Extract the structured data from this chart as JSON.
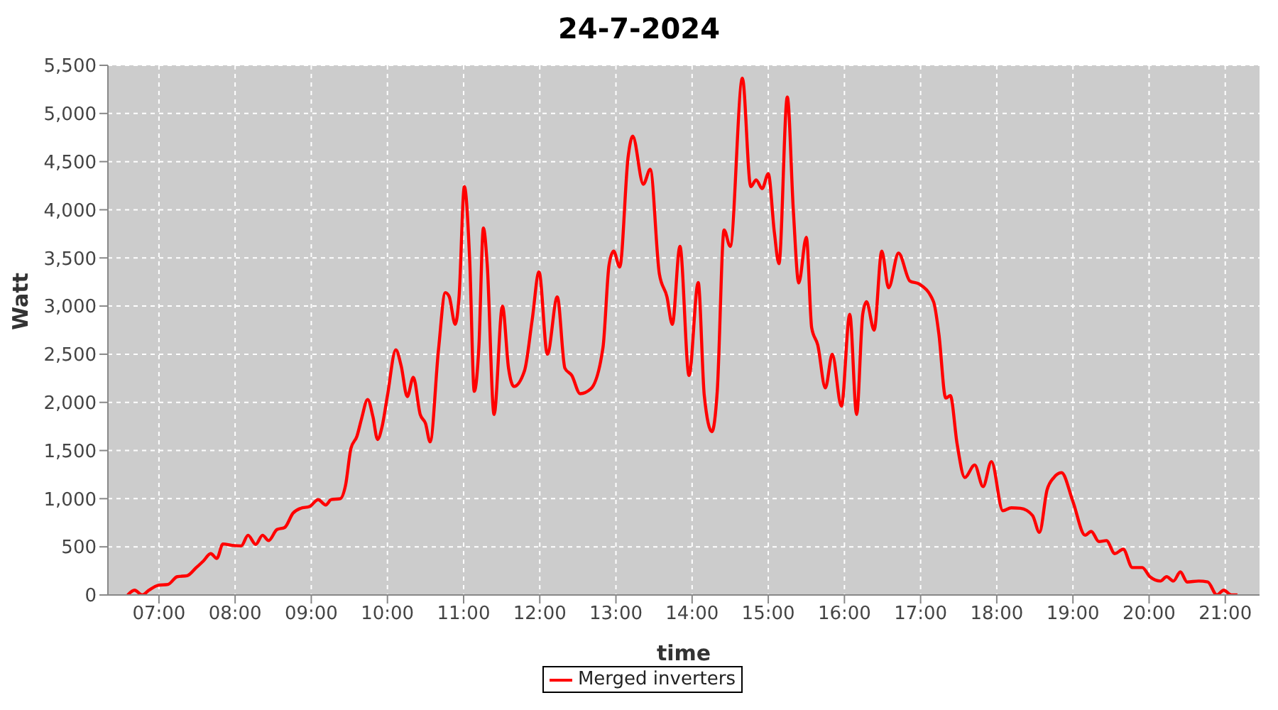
{
  "chart_data": {
    "type": "line",
    "title": "24-7-2024",
    "xlabel": "time",
    "ylabel": "Watt",
    "xlim": [
      6.33,
      21.45
    ],
    "xticks": [
      {
        "value": 7,
        "label": "07:00"
      },
      {
        "value": 8,
        "label": "08:00"
      },
      {
        "value": 9,
        "label": "09:00"
      },
      {
        "value": 10,
        "label": "10:00"
      },
      {
        "value": 11,
        "label": "11:00"
      },
      {
        "value": 12,
        "label": "12:00"
      },
      {
        "value": 13,
        "label": "13:00"
      },
      {
        "value": 14,
        "label": "14:00"
      },
      {
        "value": 15,
        "label": "15:00"
      },
      {
        "value": 16,
        "label": "16:00"
      },
      {
        "value": 17,
        "label": "17:00"
      },
      {
        "value": 18,
        "label": "18:00"
      },
      {
        "value": 19,
        "label": "19:00"
      },
      {
        "value": 20,
        "label": "20:00"
      },
      {
        "value": 21,
        "label": "21:00"
      }
    ],
    "ylim": [
      0,
      5500
    ],
    "yticks": [
      0,
      500,
      {
        "value": 1000,
        "label": "1,000"
      },
      {
        "value": 1500,
        "label": "1,500"
      },
      {
        "value": 2000,
        "label": "2,000"
      },
      {
        "value": 2500,
        "label": "2,500"
      },
      {
        "value": 3000,
        "label": "3,000"
      },
      {
        "value": 3500,
        "label": "3,500"
      },
      {
        "value": 4000,
        "label": "4,000"
      },
      {
        "value": 4500,
        "label": "4,500"
      },
      {
        "value": 5000,
        "label": "5,000"
      },
      {
        "value": 5500,
        "label": "5,500"
      }
    ],
    "grid": true,
    "legend": "bottom",
    "marker": "none",
    "line_style": "solid",
    "series": [
      {
        "name": "Merged inverters",
        "color": "#ff0000",
        "x": [
          6.59,
          6.68,
          6.78,
          6.87,
          6.99,
          7.12,
          7.24,
          7.37,
          7.49,
          7.58,
          7.68,
          7.76,
          7.84,
          7.96,
          8.08,
          8.17,
          8.27,
          8.36,
          8.44,
          8.55,
          8.65,
          8.76,
          8.86,
          8.98,
          9.09,
          9.19,
          9.26,
          9.38,
          9.45,
          9.52,
          9.6,
          9.66,
          9.74,
          9.81,
          9.87,
          9.93,
          10.0,
          10.11,
          10.18,
          10.26,
          10.34,
          10.43,
          10.5,
          10.56,
          10.67,
          10.76,
          10.81,
          10.89,
          10.94,
          11.01,
          11.08,
          11.14,
          11.2,
          11.26,
          11.31,
          11.4,
          11.51,
          11.59,
          11.66,
          11.8,
          11.9,
          11.99,
          12.1,
          12.23,
          12.33,
          12.42,
          12.53,
          12.67,
          12.83,
          12.91,
          12.97,
          13.05,
          13.16,
          13.22,
          13.36,
          13.45,
          13.57,
          13.67,
          13.74,
          13.84,
          13.96,
          14.08,
          14.16,
          14.26,
          14.33,
          14.42,
          14.5,
          14.66,
          14.77,
          14.84,
          14.92,
          15.0,
          15.08,
          15.14,
          15.25,
          15.33,
          15.4,
          15.5,
          15.57,
          15.65,
          15.75,
          15.84,
          15.96,
          16.07,
          16.16,
          16.24,
          16.29,
          16.39,
          16.49,
          16.58,
          16.71,
          16.86,
          16.98,
          17.17,
          17.24,
          17.33,
          17.39,
          17.48,
          17.58,
          17.71,
          17.82,
          17.93,
          18.08,
          18.19,
          18.31,
          18.47,
          18.56,
          18.66,
          18.75,
          18.85,
          19.0,
          19.16,
          19.24,
          19.34,
          19.44,
          19.55,
          19.66,
          19.78,
          19.91,
          20.01,
          20.15,
          20.23,
          20.32,
          20.41,
          20.5,
          20.65,
          20.77,
          20.89,
          20.98,
          21.08,
          21.16
        ],
        "values": [
          0,
          50,
          0,
          50,
          100,
          110,
          190,
          200,
          285,
          350,
          430,
          380,
          530,
          515,
          510,
          620,
          525,
          620,
          565,
          680,
          700,
          850,
          900,
          920,
          990,
          935,
          990,
          1000,
          1140,
          1520,
          1650,
          1830,
          2030,
          1850,
          1615,
          1750,
          2070,
          2545,
          2380,
          2060,
          2260,
          1875,
          1780,
          1590,
          2545,
          3140,
          3100,
          2810,
          3095,
          4240,
          3475,
          2115,
          2570,
          3810,
          3430,
          1875,
          3000,
          2355,
          2165,
          2330,
          2855,
          3355,
          2500,
          3095,
          2355,
          2280,
          2090,
          2140,
          2570,
          3430,
          3570,
          3405,
          4550,
          4765,
          4265,
          4420,
          3335,
          3095,
          2810,
          3620,
          2280,
          3245,
          2070,
          1695,
          2115,
          3790,
          3620,
          5365,
          4240,
          4310,
          4220,
          4375,
          3765,
          3440,
          5170,
          3980,
          3240,
          3715,
          2775,
          2595,
          2150,
          2500,
          1960,
          2915,
          1875,
          2915,
          3045,
          2750,
          3570,
          3190,
          3550,
          3260,
          3230,
          3045,
          2710,
          2045,
          2070,
          1565,
          1220,
          1350,
          1125,
          1385,
          875,
          905,
          900,
          825,
          650,
          1090,
          1220,
          1270,
          970,
          620,
          660,
          555,
          565,
          430,
          475,
          285,
          285,
          190,
          145,
          190,
          145,
          240,
          135,
          145,
          135,
          0,
          50,
          0,
          0
        ]
      }
    ]
  }
}
